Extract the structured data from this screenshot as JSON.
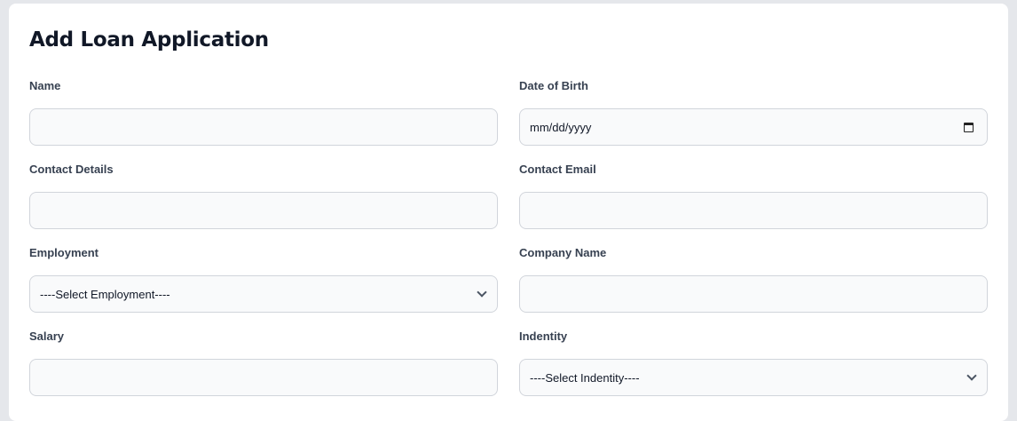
{
  "title": "Add Loan Application",
  "fields": {
    "name": {
      "label": "Name",
      "value": ""
    },
    "dob": {
      "label": "Date of Birth",
      "placeholder": "mm/dd/yyyy"
    },
    "contact": {
      "label": "Contact Details",
      "value": ""
    },
    "email": {
      "label": "Contact Email",
      "value": ""
    },
    "employment": {
      "label": "Employment",
      "selected": "----Select Employment----"
    },
    "company": {
      "label": "Company Name",
      "value": ""
    },
    "salary": {
      "label": "Salary",
      "value": ""
    },
    "identity": {
      "label": "Indentity",
      "selected": "----Select Indentity----"
    }
  },
  "icons": {
    "calendar": "calendar-icon",
    "select": "chevron-down-icon"
  }
}
